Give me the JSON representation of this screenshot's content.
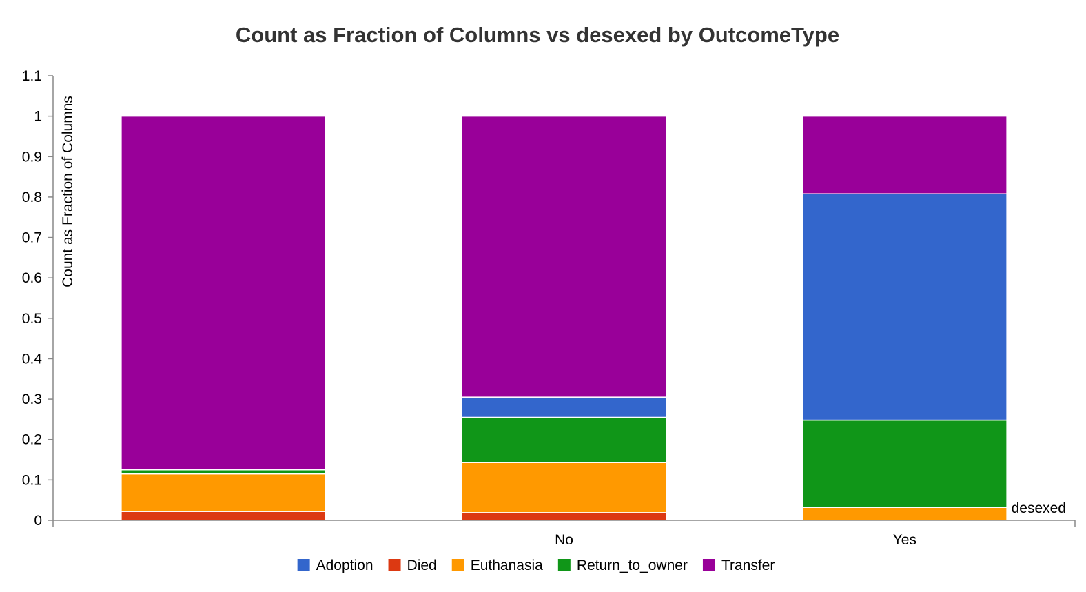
{
  "chart_data": {
    "type": "bar",
    "stacked": true,
    "title": "Count as Fraction of Columns vs desexed by OutcomeType",
    "xlabel": "desexed",
    "ylabel": "Count as Fraction of Columns",
    "categories": [
      "",
      "No",
      "Yes"
    ],
    "ylim": [
      0,
      1.1
    ],
    "yticks": [
      "0",
      "0.1",
      "0.2",
      "0.3",
      "0.4",
      "0.5",
      "0.6",
      "0.7",
      "0.8",
      "0.9",
      "1",
      "1.1"
    ],
    "grid": false,
    "legend_position": "bottom",
    "stack_order": [
      "Died",
      "Euthanasia",
      "Return_to_owner",
      "Adoption",
      "Transfer"
    ],
    "series": [
      {
        "name": "Adoption",
        "color": "#3366cc",
        "values": [
          0.0,
          0.05,
          0.56
        ]
      },
      {
        "name": "Died",
        "color": "#dc3912",
        "values": [
          0.022,
          0.019,
          0.0
        ]
      },
      {
        "name": "Euthanasia",
        "color": "#ff9900",
        "values": [
          0.093,
          0.124,
          0.032
        ]
      },
      {
        "name": "Return_to_owner",
        "color": "#109618",
        "values": [
          0.01,
          0.112,
          0.216
        ]
      },
      {
        "name": "Transfer",
        "color": "#990099",
        "values": [
          0.875,
          0.695,
          0.192
        ]
      }
    ]
  }
}
